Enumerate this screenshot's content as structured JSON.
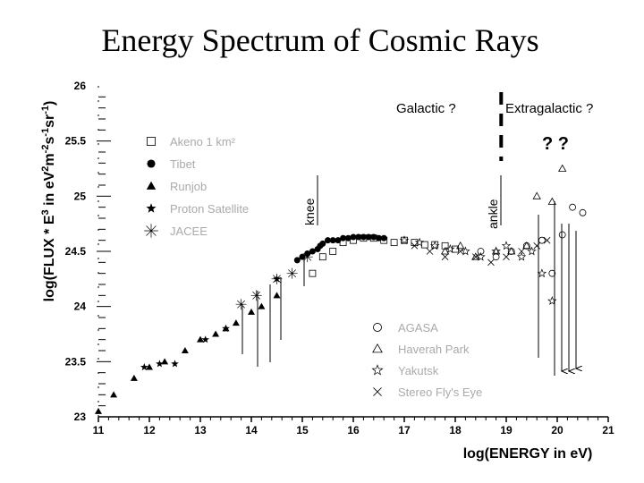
{
  "chart_data": {
    "type": "scatter",
    "title": "Energy Spectrum of Cosmic Rays",
    "xlabel": "log(ENERGY in eV)",
    "ylabel_parts": [
      "log(FLUX * E",
      "3",
      " in eV",
      "2",
      "m",
      "-2",
      "s",
      "-1",
      "sr",
      "-1",
      ")"
    ],
    "xlim": [
      11,
      21
    ],
    "ylim": [
      23,
      26
    ],
    "xticks": [
      "11",
      "12",
      "13",
      "14",
      "15",
      "16",
      "17",
      "18",
      "19",
      "20",
      "21"
    ],
    "yticks": [
      "23",
      "23.5",
      "24",
      "24.5",
      "25",
      "25.5",
      "26"
    ],
    "annotations": {
      "galactic": "Galactic ?",
      "extragalactic": "Extragalactic ?",
      "question": "? ?",
      "knee": "knee",
      "ankle": "ankle"
    },
    "knee_x": 15.35,
    "ankle_x": 18.7,
    "divider_x": 18.9,
    "legend_left": [
      {
        "marker": "open-square",
        "label": "Akeno 1 km²"
      },
      {
        "marker": "filled-circle",
        "label": "Tibet"
      },
      {
        "marker": "filled-triangle",
        "label": "Runjob"
      },
      {
        "marker": "filled-star",
        "label": "Proton Satellite"
      },
      {
        "marker": "cross",
        "label": "JACEE"
      }
    ],
    "legend_right": [
      {
        "marker": "open-circle",
        "label": "AGASA"
      },
      {
        "marker": "open-triangle",
        "label": "Haverah Park"
      },
      {
        "marker": "open-star",
        "label": "Yakutsk"
      },
      {
        "marker": "x-cross",
        "label": "Stereo Fly's Eye"
      }
    ],
    "series": [
      {
        "name": "Runjob",
        "marker": "filled-triangle",
        "x": [
          11.0,
          11.3,
          11.7,
          12.0,
          12.3,
          12.7,
          13.0,
          13.3,
          13.5,
          13.7,
          14.0,
          14.2,
          14.5
        ],
        "y": [
          23.05,
          23.2,
          23.35,
          23.45,
          23.5,
          23.6,
          23.7,
          23.75,
          23.8,
          23.85,
          23.95,
          24.0,
          24.1
        ]
      },
      {
        "name": "Proton Satellite",
        "marker": "filled-star",
        "x": [
          11.9,
          12.2,
          12.5,
          13.1,
          13.5,
          14.5
        ],
        "y": [
          23.45,
          23.48,
          23.48,
          23.7,
          23.8,
          24.25
        ]
      },
      {
        "name": "JACEE",
        "marker": "cross",
        "x": [
          13.8,
          14.1,
          14.5,
          14.8,
          15.1
        ],
        "y": [
          24.02,
          24.1,
          24.25,
          24.3,
          24.45
        ]
      },
      {
        "name": "Tibet",
        "marker": "filled-circle",
        "x": [
          14.9,
          15.0,
          15.1,
          15.2,
          15.3,
          15.35,
          15.4,
          15.5,
          15.6,
          15.7,
          15.8,
          15.9,
          16.0,
          16.1,
          16.2,
          16.3,
          16.4,
          16.5,
          16.6
        ],
        "y": [
          24.42,
          24.45,
          24.48,
          24.5,
          24.52,
          24.55,
          24.57,
          24.6,
          24.6,
          24.6,
          24.62,
          24.62,
          24.63,
          24.63,
          24.63,
          24.63,
          24.63,
          24.62,
          24.62
        ]
      },
      {
        "name": "Akeno 1 km²",
        "marker": "open-square",
        "x": [
          15.2,
          15.4,
          15.6,
          15.8,
          16.0,
          16.2,
          16.4,
          16.6,
          16.8,
          17.0,
          17.2,
          17.4,
          17.6,
          17.8,
          18.0
        ],
        "y": [
          24.3,
          24.45,
          24.5,
          24.58,
          24.6,
          24.62,
          24.62,
          24.6,
          24.58,
          24.6,
          24.58,
          24.56,
          24.56,
          24.55,
          24.52
        ]
      },
      {
        "name": "Yakutsk",
        "marker": "open-star",
        "x": [
          17.0,
          17.3,
          17.6,
          17.9,
          18.2,
          18.5,
          18.8,
          19.0,
          19.3,
          19.5,
          19.7,
          19.9
        ],
        "y": [
          24.6,
          24.58,
          24.55,
          24.52,
          24.5,
          24.45,
          24.5,
          24.55,
          24.45,
          24.5,
          24.3,
          24.05
        ]
      },
      {
        "name": "Stereo Fly's Eye",
        "marker": "x-cross",
        "x": [
          17.2,
          17.5,
          17.8,
          18.1,
          18.4,
          18.7,
          19.0,
          19.3,
          19.6,
          19.8
        ],
        "y": [
          24.55,
          24.5,
          24.45,
          24.5,
          24.45,
          24.4,
          24.45,
          24.5,
          24.55,
          24.6
        ]
      },
      {
        "name": "Haverah Park",
        "marker": "open-triangle",
        "x": [
          17.8,
          18.1,
          18.4,
          18.8,
          19.1,
          19.4,
          19.6,
          19.9,
          20.1
        ],
        "y": [
          24.5,
          24.55,
          24.45,
          24.5,
          24.5,
          24.55,
          25.0,
          24.95,
          25.25
        ]
      },
      {
        "name": "AGASA",
        "marker": "open-circle",
        "x": [
          18.5,
          18.8,
          19.1,
          19.4,
          19.7,
          19.9,
          20.1,
          20.3,
          20.5
        ],
        "y": [
          24.5,
          24.45,
          24.5,
          24.55,
          24.6,
          24.3,
          24.65,
          24.9,
          24.85
        ]
      }
    ]
  }
}
